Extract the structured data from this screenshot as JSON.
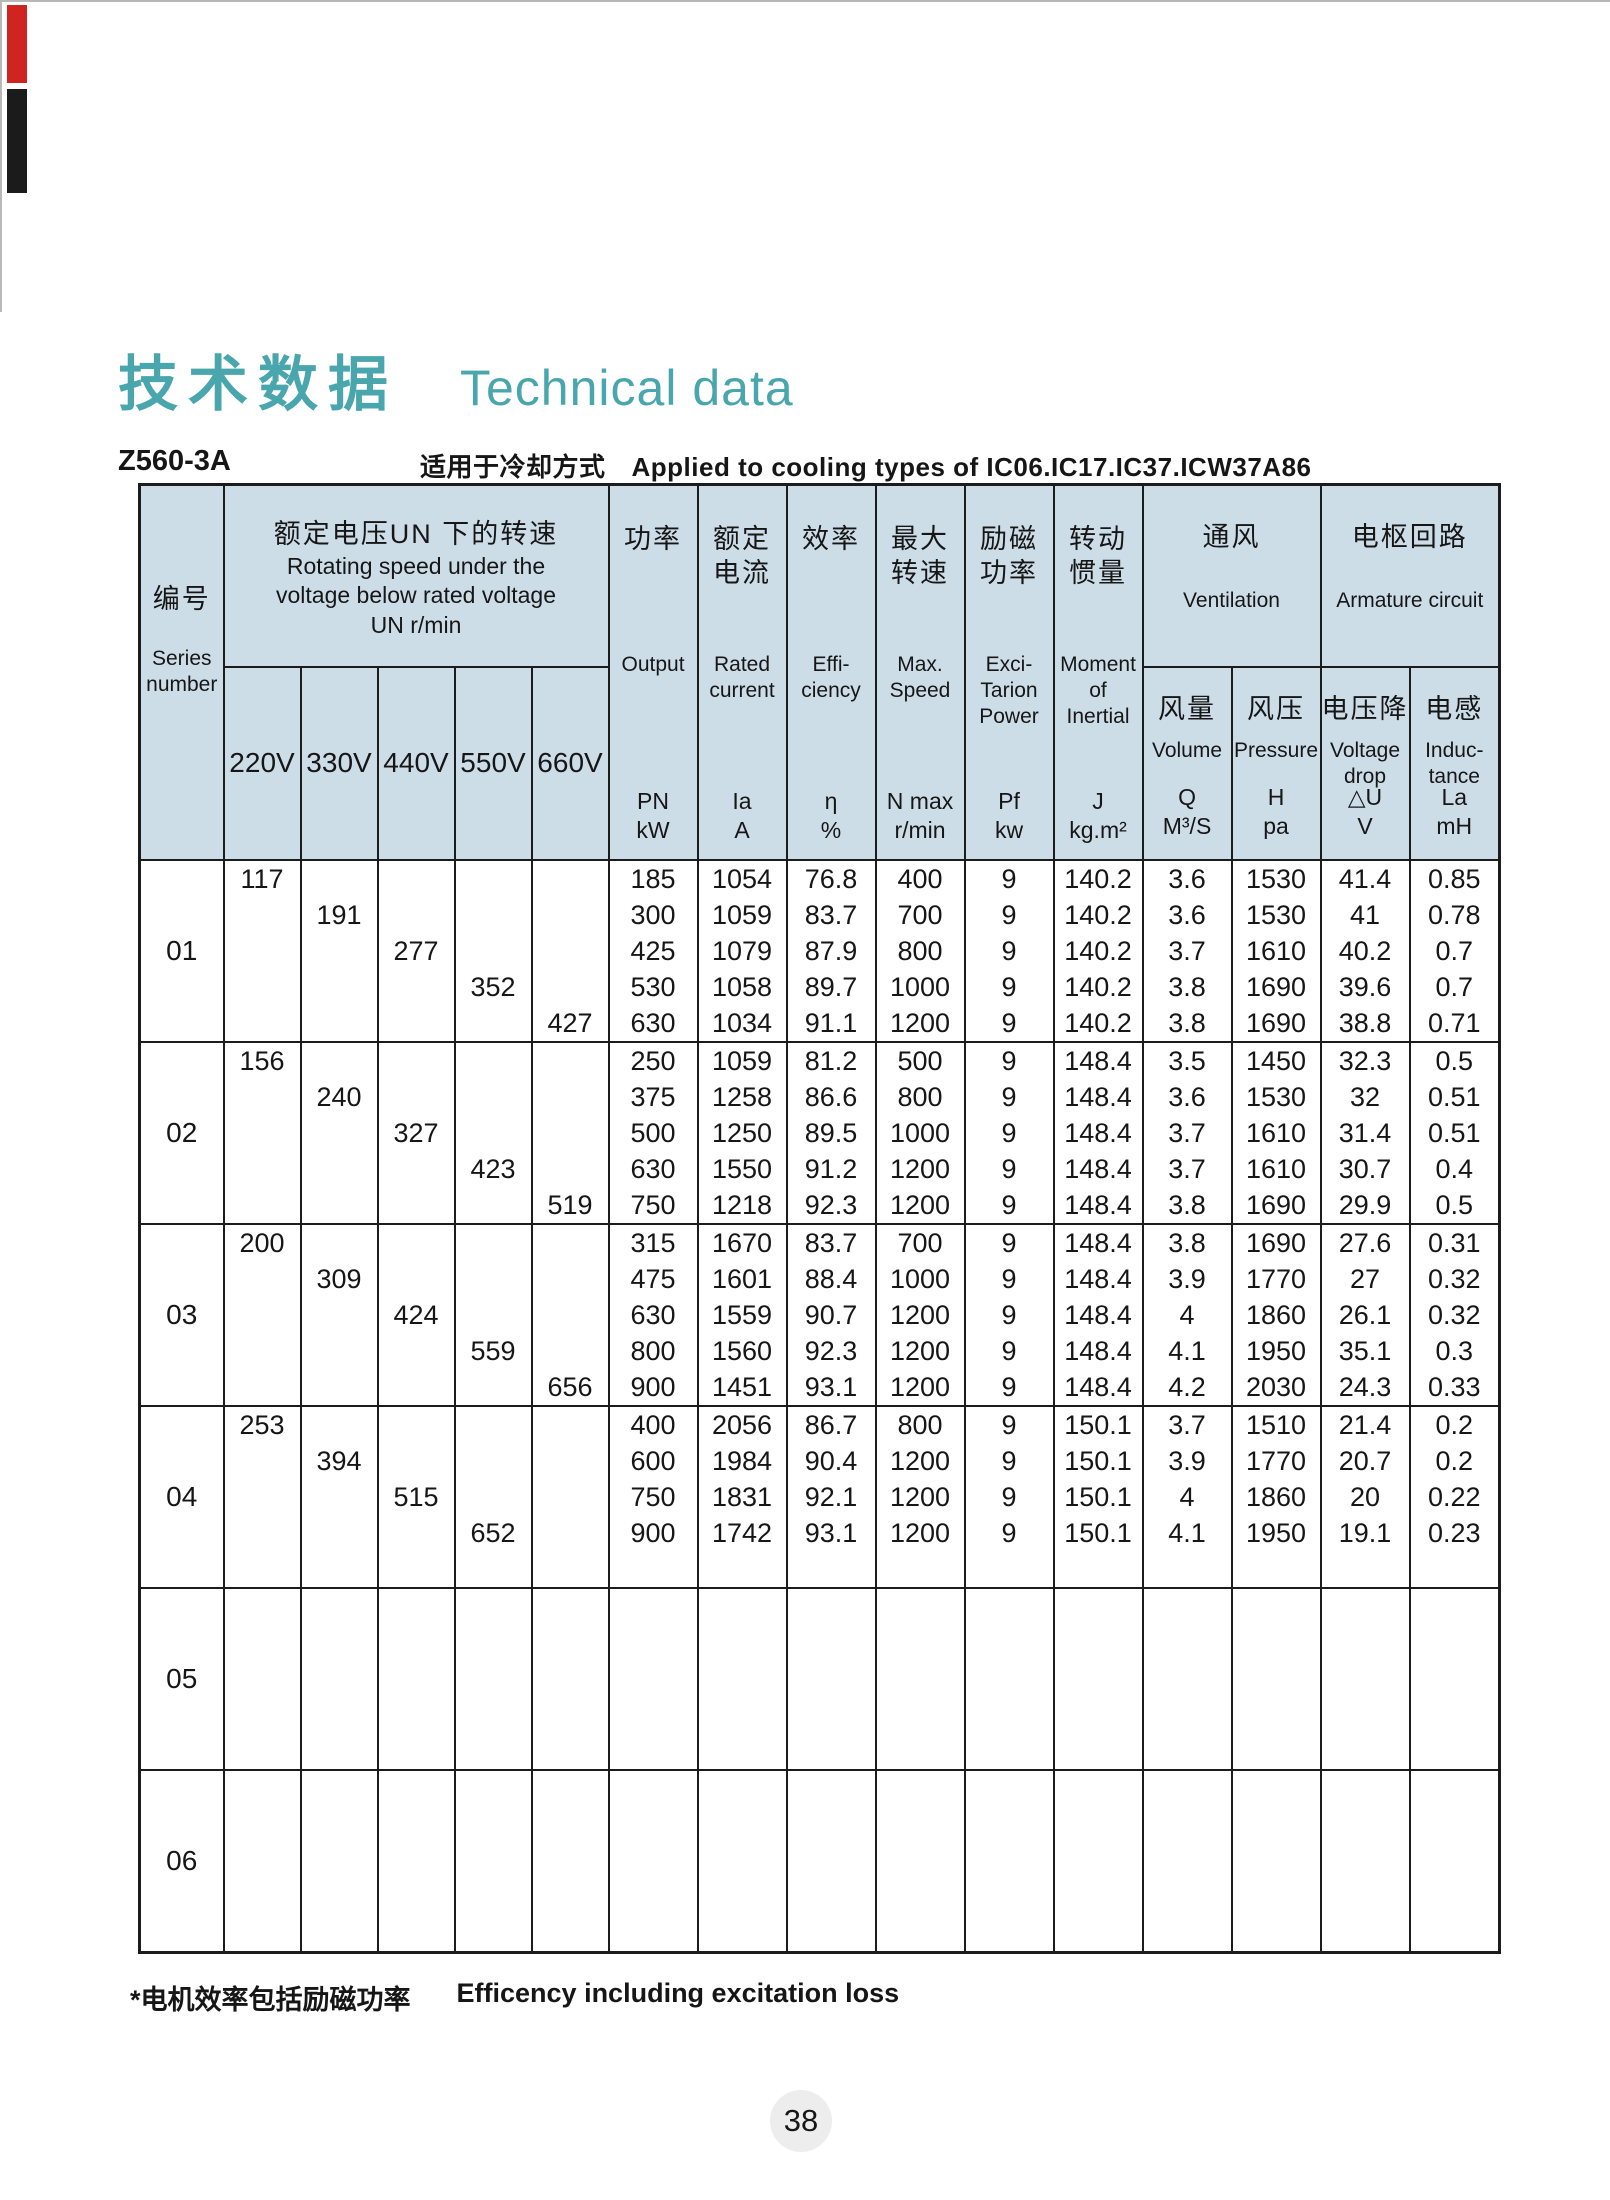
{
  "page": {
    "title_cn": "技术数据",
    "title_en": "Technical data",
    "model": "Z560-3A",
    "cooling_note_cn": "适用于冷却方式",
    "cooling_note_en": "Applied to cooling types of IC06.IC17.IC37.ICW37A86",
    "footnote_cn": "*电机效率包括励磁功率",
    "footnote_en": "Efficency including excitation loss",
    "page_number": "38",
    "accent_color": "#4aa6ad",
    "header_bg": "#cddde8"
  },
  "table": {
    "series_header": {
      "cn": "编号",
      "en": "Series\nnumber"
    },
    "voltage_group": {
      "cn": "额定电压UN 下的转速",
      "en": "Rotating speed under the\nvoltage below rated voltage",
      "unit": "UN  r/min"
    },
    "voltage_cols": [
      "220V",
      "330V",
      "440V",
      "550V",
      "660V"
    ],
    "columns": [
      {
        "cn": "功率",
        "en": "Output",
        "sym": "PN",
        "unit": "kW"
      },
      {
        "cn": "额定\n电流",
        "en": "Rated\ncurrent",
        "sym": "Ia",
        "unit": "A"
      },
      {
        "cn": "效率",
        "en": "Effi-\nciency",
        "sym": "η",
        "unit": "%"
      },
      {
        "cn": "最大\n转速",
        "en": "Max.\nSpeed",
        "sym": "N max",
        "unit": "r/min"
      },
      {
        "cn": "励磁\n功率",
        "en": "Exci-\nTarion\nPower",
        "sym": "Pf",
        "unit": "kw"
      },
      {
        "cn": "转动\n惯量",
        "en": "Moment\nof\nInertial",
        "sym": "J",
        "unit": "kg.m²"
      },
      {
        "cn": "风量",
        "en": "Volume",
        "sym": "Q",
        "unit": "M³/S"
      },
      {
        "cn": "风压",
        "en": "Pressure",
        "sym": "H",
        "unit": "pa"
      },
      {
        "cn": "电压降",
        "en": "Voltage\ndrop",
        "sym": "△U",
        "unit": "V"
      },
      {
        "cn": "电感",
        "en": "Induc-\ntance",
        "sym": "La",
        "unit": "mH"
      }
    ],
    "col_groups": {
      "ventilation": {
        "cn": "通风",
        "en": "Ventilation"
      },
      "armature": {
        "cn": "电枢回路",
        "en": "Armature circuit"
      }
    },
    "groups": [
      {
        "series": "01",
        "voltages": [
          "117",
          "191",
          "277",
          "352",
          "427"
        ],
        "rows": [
          [
            "185",
            "1054",
            "76.8",
            "400",
            "9",
            "140.2",
            "3.6",
            "1530",
            "41.4",
            "0.85"
          ],
          [
            "300",
            "1059",
            "83.7",
            "700",
            "9",
            "140.2",
            "3.6",
            "1530",
            "41",
            "0.78"
          ],
          [
            "425",
            "1079",
            "87.9",
            "800",
            "9",
            "140.2",
            "3.7",
            "1610",
            "40.2",
            "0.7"
          ],
          [
            "530",
            "1058",
            "89.7",
            "1000",
            "9",
            "140.2",
            "3.8",
            "1690",
            "39.6",
            "0.7"
          ],
          [
            "630",
            "1034",
            "91.1",
            "1200",
            "9",
            "140.2",
            "3.8",
            "1690",
            "38.8",
            "0.71"
          ]
        ]
      },
      {
        "series": "02",
        "voltages": [
          "156",
          "240",
          "327",
          "423",
          "519"
        ],
        "rows": [
          [
            "250",
            "1059",
            "81.2",
            "500",
            "9",
            "148.4",
            "3.5",
            "1450",
            "32.3",
            "0.5"
          ],
          [
            "375",
            "1258",
            "86.6",
            "800",
            "9",
            "148.4",
            "3.6",
            "1530",
            "32",
            "0.51"
          ],
          [
            "500",
            "1250",
            "89.5",
            "1000",
            "9",
            "148.4",
            "3.7",
            "1610",
            "31.4",
            "0.51"
          ],
          [
            "630",
            "1550",
            "91.2",
            "1200",
            "9",
            "148.4",
            "3.7",
            "1610",
            "30.7",
            "0.4"
          ],
          [
            "750",
            "1218",
            "92.3",
            "1200",
            "9",
            "148.4",
            "3.8",
            "1690",
            "29.9",
            "0.5"
          ]
        ]
      },
      {
        "series": "03",
        "voltages": [
          "200",
          "309",
          "424",
          "559",
          "656"
        ],
        "rows": [
          [
            "315",
            "1670",
            "83.7",
            "700",
            "9",
            "148.4",
            "3.8",
            "1690",
            "27.6",
            "0.31"
          ],
          [
            "475",
            "1601",
            "88.4",
            "1000",
            "9",
            "148.4",
            "3.9",
            "1770",
            "27",
            "0.32"
          ],
          [
            "630",
            "1559",
            "90.7",
            "1200",
            "9",
            "148.4",
            "4",
            "1860",
            "26.1",
            "0.32"
          ],
          [
            "800",
            "1560",
            "92.3",
            "1200",
            "9",
            "148.4",
            "4.1",
            "1950",
            "35.1",
            "0.3"
          ],
          [
            "900",
            "1451",
            "93.1",
            "1200",
            "9",
            "148.4",
            "4.2",
            "2030",
            "24.3",
            "0.33"
          ]
        ]
      },
      {
        "series": "04",
        "voltages": [
          "253",
          "394",
          "515",
          "652"
        ],
        "rows": [
          [
            "400",
            "2056",
            "86.7",
            "800",
            "9",
            "150.1",
            "3.7",
            "1510",
            "21.4",
            "0.2"
          ],
          [
            "600",
            "1984",
            "90.4",
            "1200",
            "9",
            "150.1",
            "3.9",
            "1770",
            "20.7",
            "0.2"
          ],
          [
            "750",
            "1831",
            "92.1",
            "1200",
            "9",
            "150.1",
            "4",
            "1860",
            "20",
            "0.22"
          ],
          [
            "900",
            "1742",
            "93.1",
            "1200",
            "9",
            "150.1",
            "4.1",
            "1950",
            "19.1",
            "0.23"
          ]
        ]
      },
      {
        "series": "05",
        "voltages": [],
        "rows": []
      },
      {
        "series": "06",
        "voltages": [],
        "rows": []
      }
    ]
  }
}
